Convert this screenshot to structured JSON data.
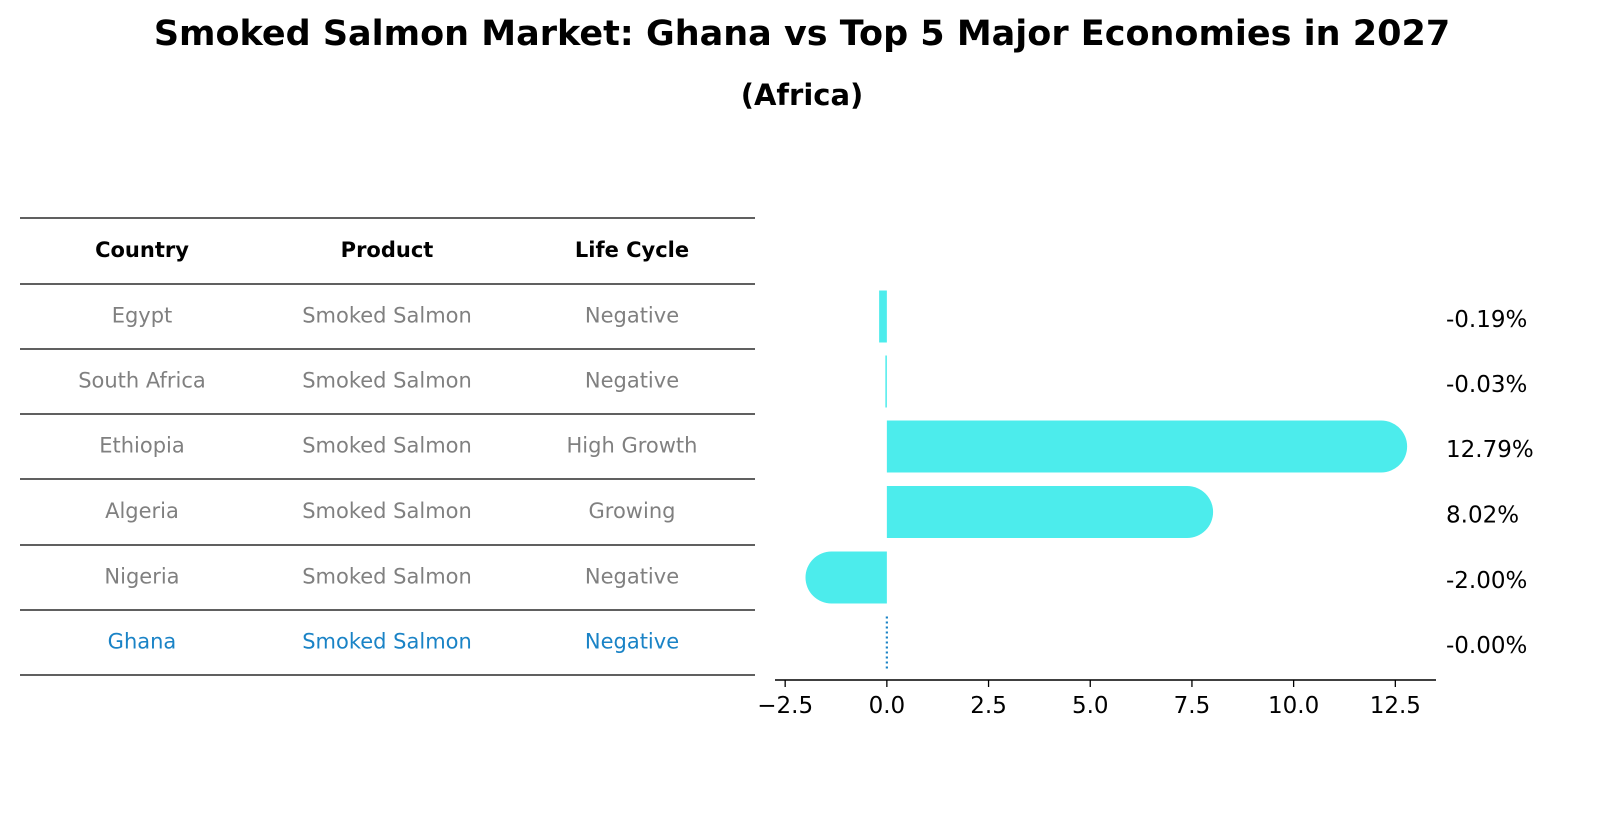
{
  "page": {
    "title": "Smoked Salmon Market: Ghana vs Top 5 Major Economies in 2027",
    "subtitle": "(Africa)"
  },
  "colors": {
    "bar": "#4cecec",
    "highlight": "#1a83c6",
    "muted_text": "#808080",
    "rule": "#000000"
  },
  "table": {
    "headers": [
      "Country",
      "Product",
      "Life Cycle"
    ],
    "rows": [
      {
        "country": "Egypt",
        "product": "Smoked Salmon",
        "life_cycle": "Negative",
        "highlight": false
      },
      {
        "country": "South Africa",
        "product": "Smoked Salmon",
        "life_cycle": "Negative",
        "highlight": false
      },
      {
        "country": "Ethiopia",
        "product": "Smoked Salmon",
        "life_cycle": "High Growth",
        "highlight": false
      },
      {
        "country": "Algeria",
        "product": "Smoked Salmon",
        "life_cycle": "Growing",
        "highlight": false
      },
      {
        "country": "Nigeria",
        "product": "Smoked Salmon",
        "life_cycle": "Negative",
        "highlight": false
      },
      {
        "country": "Ghana",
        "product": "Smoked Salmon",
        "life_cycle": "Negative",
        "highlight": true
      }
    ]
  },
  "chart_data": {
    "type": "bar",
    "orientation": "horizontal",
    "title": "Smoked Salmon Market: Ghana vs Top 5 Major Economies in 2027",
    "subtitle": "(Africa)",
    "categories": [
      "Egypt",
      "South Africa",
      "Ethiopia",
      "Algeria",
      "Nigeria",
      "Ghana"
    ],
    "values": [
      -0.19,
      -0.03,
      12.79,
      8.02,
      -2.0,
      -0.0
    ],
    "value_labels": [
      "-0.19%",
      "-0.03%",
      "12.79%",
      "8.02%",
      "-2.00%",
      "-0.00%"
    ],
    "xlim": [
      -2.75,
      13.5
    ],
    "xticks": [
      -2.5,
      0.0,
      2.5,
      5.0,
      7.5,
      10.0,
      12.5
    ],
    "xtick_labels": [
      "−2.5",
      "0.0",
      "2.5",
      "5.0",
      "7.5",
      "10.0",
      "12.5"
    ],
    "xlabel": "",
    "ylabel": "",
    "grid": false,
    "highlight_category": "Ghana",
    "highlight_style": "dotted"
  }
}
